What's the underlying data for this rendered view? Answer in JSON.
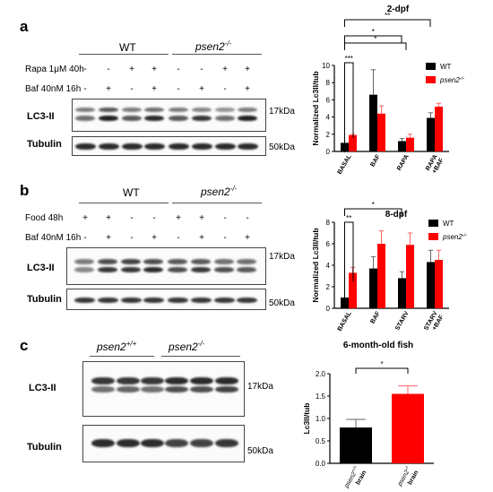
{
  "panel_a": {
    "letter": "a",
    "wt": "WT",
    "mut": "psen2",
    "mut_sup": "-/-",
    "treat1_label": "Rapa 1μM 40h",
    "treat2_label": "Baf 40nM 16h",
    "treat1_signs": [
      "-",
      "-",
      "+",
      "+",
      "-",
      "-",
      "+",
      "+"
    ],
    "treat2_signs": [
      "-",
      "+",
      "-",
      "+",
      "-",
      "+",
      "-",
      "+"
    ],
    "lc3_label": "LC3-II",
    "tub_label": "Tubulin",
    "kda_lc3": "17kDa",
    "kda_tub": "50kDa"
  },
  "panel_b": {
    "letter": "b",
    "wt": "WT",
    "mut": "psen2",
    "mut_sup": "-/-",
    "treat1_label": "Food 48h",
    "treat2_label": "Baf 40nM 16h",
    "treat1_signs": [
      "+",
      "+",
      "-",
      "-",
      "+",
      "+",
      "-",
      "-"
    ],
    "treat2_signs": [
      "-",
      "+",
      "-",
      "+",
      "-",
      "+",
      "-",
      "+"
    ],
    "lc3_label": "LC3-II",
    "tub_label": "Tubulin",
    "kda_lc3": "17kDa",
    "kda_tub": "50kDa"
  },
  "panel_c": {
    "letter": "c",
    "wt": "psen2",
    "wt_sup": "+/+",
    "mut": "psen2",
    "mut_sup": "-/-",
    "lc3_label": "LC3-II",
    "tub_label": "Tubulin",
    "kda_lc3": "17kDa",
    "kda_tub": "50kDa"
  },
  "colors": {
    "wt": "#000000",
    "mut": "#ff0000",
    "errbar_wt": "#666666",
    "errbar_mut": "#ff6666"
  },
  "chart_data": [
    {
      "type": "bar",
      "title": "2-dpf",
      "ylabel": "Normalized Lc3II/tub",
      "categories": [
        "BASAL",
        "BAF",
        "RAPA",
        "RAPA\n+BAF"
      ],
      "ylim": [
        0,
        10
      ],
      "yticks": [
        0,
        2,
        4,
        6,
        8,
        10
      ],
      "legend_position": "top-right",
      "series": [
        {
          "name": "WT",
          "values": [
            1.0,
            6.6,
            1.2,
            3.9
          ],
          "errors": [
            0.0,
            2.9,
            0.3,
            0.6
          ]
        },
        {
          "name": "psen2",
          "name_sup": "-/-",
          "values": [
            1.9,
            4.4,
            1.6,
            5.2
          ],
          "errors": [
            0.1,
            0.9,
            0.4,
            0.4
          ]
        }
      ],
      "significance": [
        "***",
        "*",
        "*",
        "**"
      ]
    },
    {
      "type": "bar",
      "title": "8-dpf",
      "ylabel": "Normalized Lc3II/tub",
      "categories": [
        "BASAL",
        "BAF",
        "STARV",
        "STARV\n+BAF"
      ],
      "ylim": [
        0,
        8
      ],
      "yticks": [
        0,
        2,
        4,
        6,
        8
      ],
      "legend_position": "top-right",
      "series": [
        {
          "name": "WT",
          "values": [
            1.0,
            3.7,
            2.8,
            4.3
          ],
          "errors": [
            0.0,
            1.1,
            0.6,
            1.1
          ]
        },
        {
          "name": "psen2",
          "name_sup": "-/-",
          "values": [
            3.3,
            6.0,
            5.9,
            4.5
          ],
          "errors": [
            0.5,
            1.2,
            1.1,
            0.9
          ]
        }
      ],
      "significance": [
        "**",
        "*"
      ]
    },
    {
      "type": "bar",
      "title": "6-month-old fish",
      "ylabel": "Lc3II/tub",
      "categories": [
        "psen2+/+\nbrain",
        "psen2-/-\nbrain"
      ],
      "cat_genes": [
        "psen2",
        "psen2"
      ],
      "cat_sups": [
        "+/+",
        "-/-"
      ],
      "cat_tissue": [
        "brain",
        "brain"
      ],
      "ylim": [
        0,
        2.0
      ],
      "yticks": [
        0.0,
        0.5,
        1.0,
        1.5,
        2.0
      ],
      "series": [
        {
          "name": "",
          "values": [
            0.8,
            1.55
          ],
          "errors": [
            0.18,
            0.18
          ]
        }
      ],
      "significance": [
        "*"
      ]
    }
  ]
}
